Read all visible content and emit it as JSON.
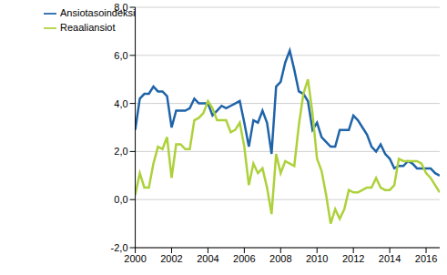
{
  "chart_data": {
    "type": "line",
    "x": [
      2000,
      2000.25,
      2000.5,
      2000.75,
      2001,
      2001.25,
      2001.5,
      2001.75,
      2002,
      2002.25,
      2002.5,
      2002.75,
      2003,
      2003.25,
      2003.5,
      2003.75,
      2004,
      2004.25,
      2004.5,
      2004.75,
      2005,
      2005.25,
      2005.5,
      2005.75,
      2006,
      2006.25,
      2006.5,
      2006.75,
      2007,
      2007.25,
      2007.5,
      2007.75,
      2008,
      2008.25,
      2008.5,
      2008.75,
      2009,
      2009.25,
      2009.5,
      2009.75,
      2010,
      2010.25,
      2010.5,
      2010.75,
      2011,
      2011.25,
      2011.5,
      2011.75,
      2012,
      2012.25,
      2012.5,
      2012.75,
      2013,
      2013.25,
      2013.5,
      2013.75,
      2014,
      2014.25,
      2014.5,
      2014.75,
      2015,
      2015.25,
      2015.5,
      2015.75,
      2016,
      2016.25,
      2016.5,
      2016.75
    ],
    "series": [
      {
        "name": "Ansiotasoindeksi",
        "color": "#1f64a8",
        "values": [
          2.9,
          4.2,
          4.4,
          4.4,
          4.7,
          4.5,
          4.5,
          4.3,
          3.0,
          3.7,
          3.7,
          3.7,
          3.8,
          4.2,
          4.0,
          4.0,
          4.0,
          3.5,
          3.7,
          3.9,
          3.8,
          3.9,
          4.0,
          4.1,
          3.2,
          2.2,
          3.3,
          3.2,
          3.7,
          3.2,
          1.9,
          4.7,
          4.9,
          5.7,
          6.2,
          5.4,
          4.5,
          4.4,
          4.1,
          2.9,
          3.2,
          2.6,
          2.4,
          2.2,
          2.2,
          2.9,
          2.9,
          2.9,
          3.5,
          3.3,
          3.0,
          2.7,
          2.2,
          2.0,
          2.3,
          1.9,
          1.7,
          1.3,
          1.4,
          1.4,
          1.6,
          1.5,
          1.3,
          1.3,
          1.3,
          1.3,
          1.1,
          1.0
        ]
      },
      {
        "name": "Reaaliansiot",
        "color": "#add13a",
        "values": [
          0.2,
          1.1,
          0.5,
          0.5,
          1.5,
          2.2,
          2.1,
          2.6,
          0.9,
          2.3,
          2.3,
          2.1,
          2.1,
          3.3,
          3.4,
          3.6,
          4.1,
          3.8,
          3.3,
          3.3,
          3.3,
          2.8,
          2.9,
          3.2,
          2.2,
          0.6,
          1.5,
          1.1,
          1.3,
          0.5,
          -0.6,
          1.9,
          1.1,
          1.6,
          1.5,
          1.4,
          3.1,
          4.4,
          5.0,
          3.6,
          1.7,
          1.2,
          0.2,
          -1.0,
          -0.4,
          -0.8,
          -0.4,
          0.4,
          0.3,
          0.3,
          0.4,
          0.5,
          0.5,
          0.9,
          0.5,
          0.4,
          0.4,
          0.6,
          1.7,
          1.6,
          1.6,
          1.6,
          1.6,
          1.5,
          1.1,
          0.9,
          0.6,
          0.3
        ]
      }
    ],
    "xlim": [
      2000,
      2016.75
    ],
    "xticks": [
      2000,
      2002,
      2004,
      2006,
      2008,
      2010,
      2012,
      2014,
      2016
    ],
    "ylim": [
      -2,
      8
    ],
    "yticks": [
      {
        "value": -2,
        "label": "-2,0"
      },
      {
        "value": 0,
        "label": "0,0"
      },
      {
        "value": 2,
        "label": "2,0"
      },
      {
        "value": 4,
        "label": "4,0"
      },
      {
        "value": 6,
        "label": "6,0"
      },
      {
        "value": 8,
        "label": "8,0"
      }
    ],
    "grid": true,
    "legend": "upper left"
  }
}
